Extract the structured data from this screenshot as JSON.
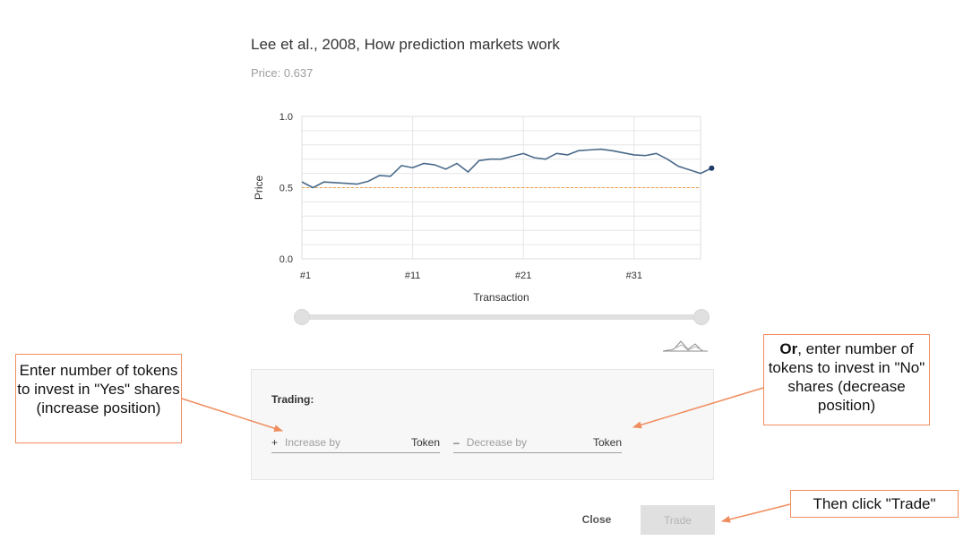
{
  "header": {
    "title": "Lee et al., 2008, How prediction markets work",
    "price_text": "Price: 0.637"
  },
  "chart_data": {
    "type": "line",
    "xlabel": "Transaction",
    "ylabel": "Price",
    "ylim": [
      0,
      1
    ],
    "xlim": [
      1,
      37
    ],
    "y_ticks": [
      "0.0",
      "0.5",
      "1.0"
    ],
    "x_ticks": [
      {
        "label": "#1",
        "x": 1
      },
      {
        "label": "#11",
        "x": 11
      },
      {
        "label": "#21",
        "x": 21
      },
      {
        "label": "#31",
        "x": 31
      }
    ],
    "series": [
      {
        "x": [
          1,
          2,
          3,
          4,
          5,
          6,
          7,
          8,
          9,
          10,
          11,
          12,
          13,
          14,
          15,
          16,
          17,
          18,
          19,
          20,
          21,
          22,
          23,
          24,
          25,
          26,
          27,
          28,
          29,
          30,
          31,
          32,
          33,
          34,
          35,
          36,
          37,
          38
        ],
        "values": [
          0.54,
          0.5,
          0.54,
          0.535,
          0.53,
          0.525,
          0.545,
          0.585,
          0.58,
          0.655,
          0.64,
          0.67,
          0.66,
          0.63,
          0.67,
          0.61,
          0.69,
          0.7,
          0.7,
          0.72,
          0.74,
          0.71,
          0.7,
          0.74,
          0.73,
          0.76,
          0.765,
          0.77,
          0.76,
          0.745,
          0.73,
          0.725,
          0.74,
          0.7,
          0.65,
          0.625,
          0.6,
          0.637
        ]
      }
    ],
    "reference_line": 0.5,
    "grid": true,
    "colors": {
      "line": "#4a6a8a",
      "reference": "#f0a04b",
      "last_point": "#1f3a68"
    }
  },
  "range_slider": {
    "start": 0,
    "end": 1
  },
  "icons": {
    "minimap": "area-chart-icon"
  },
  "trading": {
    "label": "Trading:",
    "increase": {
      "sign": "+",
      "placeholder": "Increase by",
      "unit": "Token"
    },
    "decrease": {
      "sign": "–",
      "placeholder": "Decrease by",
      "unit": "Token"
    }
  },
  "buttons": {
    "close": "Close",
    "trade": "Trade"
  },
  "callouts": {
    "yes": "Enter number of tokens to invest in \"Yes\" shares (increase position)",
    "no_bold": "Or",
    "no_rest": ", enter number of tokens to invest in \"No\" shares (decrease position)",
    "trade": "Then click \"Trade\""
  },
  "colors": {
    "callout_border": "#f08d5e"
  }
}
